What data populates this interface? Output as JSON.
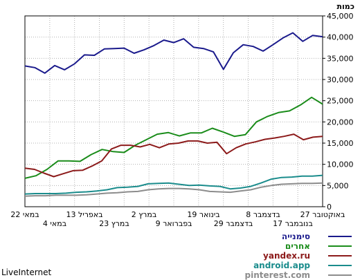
{
  "brand": "LiveInternet",
  "chart_data": {
    "type": "line",
    "ylabel": "כמות",
    "ylim": [
      0,
      45000
    ],
    "yticks": [
      0,
      5000,
      10000,
      15000,
      20000,
      25000,
      30000,
      35000,
      40000,
      45000
    ],
    "ytick_labels": [
      "0",
      "5,000",
      "10,000",
      "15,000",
      "20,000",
      "25,000",
      "30,000",
      "35,000",
      "40,000",
      "45,000"
    ],
    "grid": true,
    "legend_placement": "bottom-right",
    "x_direction": "right-to-left",
    "x_labels_row1": [
      "27 באוקטובר",
      "8 בדצמבר",
      "19 בינואר",
      "2 במרץ",
      "13 באפריל",
      "22 במאי"
    ],
    "x_labels_row2": [
      "17 בנובמבר",
      "29 בדצמבר",
      "9 בפברואר",
      "23 במרץ",
      "4 במאי"
    ],
    "series": [
      {
        "name": "סימנייה",
        "color": "#1a1a8c",
        "values": [
          40100,
          40400,
          39000,
          41000,
          39800,
          38200,
          36700,
          37800,
          38200,
          36300,
          32400,
          36500,
          37300,
          37600,
          39600,
          38700,
          39300,
          38000,
          37000,
          36200,
          37400,
          37300,
          37200,
          35700,
          35800,
          33700,
          32300,
          33300,
          31500,
          32800,
          33200
        ]
      },
      {
        "name": "אחרים",
        "color": "#1a8c1a",
        "values": [
          24200,
          25800,
          24000,
          22600,
          22200,
          21300,
          20000,
          17000,
          16600,
          17600,
          18500,
          17400,
          17400,
          16700,
          17500,
          17100,
          15800,
          14500,
          12800,
          13000,
          13500,
          12300,
          10700,
          10800,
          10800,
          8800,
          7300,
          6700
        ]
      },
      {
        "name": "yandex.ru",
        "color": "#8c1a1a",
        "values": [
          16600,
          16400,
          15800,
          17100,
          16600,
          16200,
          15900,
          15300,
          14800,
          13900,
          12500,
          15200,
          15000,
          15500,
          15500,
          15000,
          14800,
          13900,
          14700,
          14100,
          14500,
          14500,
          13600,
          10800,
          9600,
          8600,
          8500,
          7800,
          7100,
          7900,
          8800,
          9100
        ]
      },
      {
        "name": "android.app",
        "color": "#1a8c8c",
        "values": [
          7400,
          7200,
          7200,
          7000,
          6900,
          6500,
          5600,
          4800,
          4400,
          4200,
          4800,
          4900,
          5100,
          5000,
          5300,
          5600,
          5500,
          5400,
          4800,
          4600,
          4500,
          4000,
          3700,
          3500,
          3400,
          3200,
          3100,
          3100,
          3100,
          3000
        ]
      },
      {
        "name": "pinterest.com",
        "color": "#8c8c8c",
        "values": [
          5600,
          5500,
          5500,
          5400,
          5300,
          5000,
          4600,
          4000,
          3700,
          3400,
          3500,
          3600,
          4000,
          4200,
          4300,
          4300,
          4200,
          4000,
          3600,
          3500,
          3300,
          3200,
          3000,
          2800,
          2700,
          2700,
          2700,
          2600,
          2600,
          2500
        ]
      }
    ]
  }
}
